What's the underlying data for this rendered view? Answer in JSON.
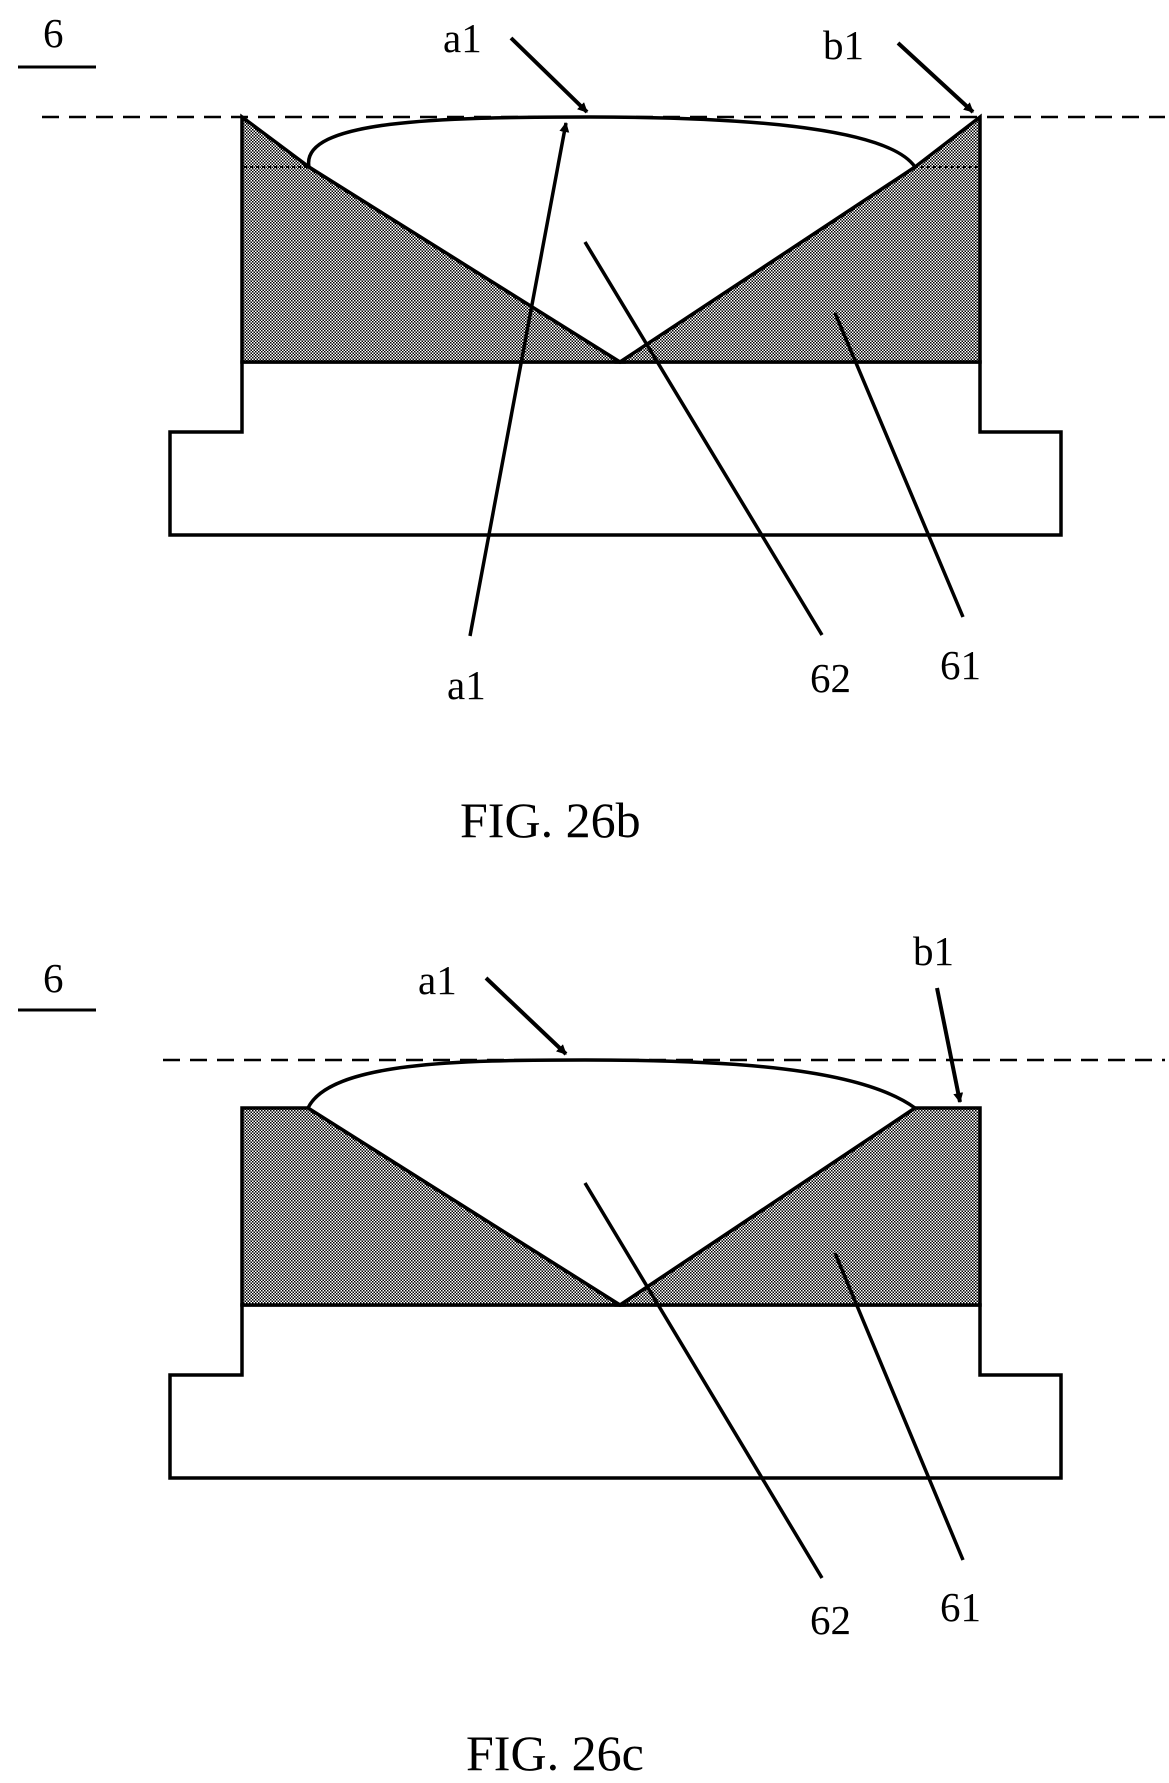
{
  "figures": [
    {
      "caption": "FIG. 26b",
      "ref_numeral": "6",
      "labels": {
        "a1_top": "a1",
        "b1_top": "b1",
        "a1_bottom": "a1",
        "n62": "62",
        "n61": "61"
      }
    },
    {
      "caption": "FIG. 26c",
      "ref_numeral": "6",
      "labels": {
        "a1_top": "a1",
        "b1_top": "b1",
        "n62": "62",
        "n61": "61"
      }
    }
  ]
}
